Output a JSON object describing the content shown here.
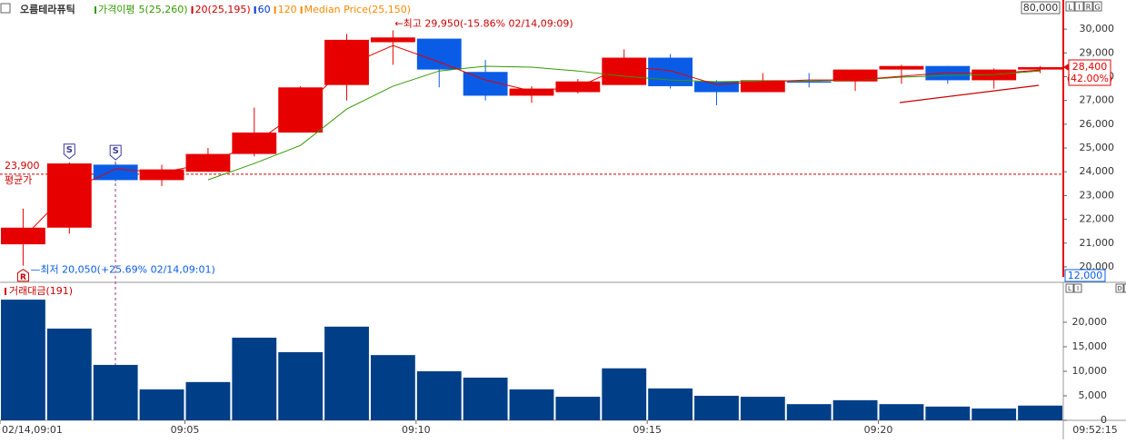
{
  "title": "오름테라퓨틱",
  "legend": [
    "가격이평",
    "5(25,260)",
    "20(25,195)",
    "60",
    "120",
    "Median Price(25,150)"
  ],
  "legend_colors": [
    "#339900",
    "#339900",
    "#cc0000",
    "#0033cc",
    "#ff8800",
    "#ff8800"
  ],
  "toolbar": [
    "L",
    "I",
    "R",
    "G"
  ],
  "volume_toolbar": [
    "L",
    "I",
    "D",
    "X"
  ],
  "chart_data": [
    {
      "type": "candlestick",
      "categories": [
        "02/14,09:01",
        null,
        null,
        null,
        "09:05",
        null,
        null,
        null,
        null,
        "09:10",
        null,
        null,
        null,
        null,
        "09:15",
        null,
        null,
        null,
        null,
        "09:20",
        null,
        null,
        null
      ],
      "open": [
        20950,
        21650,
        24300,
        23650,
        24000,
        24750,
        25650,
        27650,
        29450,
        29600,
        28200,
        27200,
        27350,
        27650,
        28800,
        27800,
        27350,
        27800,
        27800,
        28300,
        28450,
        27850,
        28300
      ],
      "high": [
        22450,
        24400,
        24350,
        24300,
        25000,
        26700,
        27600,
        29800,
        29950,
        29600,
        28700,
        27600,
        27900,
        29150,
        28950,
        27850,
        28150,
        28150,
        28300,
        28500,
        28450,
        28350,
        28450
      ],
      "low": [
        20050,
        21400,
        23600,
        23400,
        24000,
        24650,
        25650,
        27000,
        28500,
        27550,
        27000,
        26900,
        27300,
        27650,
        27500,
        26800,
        27350,
        27550,
        27400,
        27700,
        27700,
        27500,
        28150
      ],
      "close": [
        21650,
        24350,
        23650,
        24100,
        24750,
        25650,
        27550,
        29550,
        29650,
        28300,
        27200,
        27500,
        27800,
        28800,
        27600,
        27350,
        27850,
        27750,
        28300,
        28450,
        27850,
        28300,
        28400
      ],
      "up_color": "#e60000",
      "down_color": "#0a5ce6",
      "series": [
        {
          "name": "5(25,260)",
          "color": "#339900",
          "values": [
            null,
            null,
            null,
            null,
            23660,
            24350,
            25110,
            26640,
            27600,
            28240,
            28440,
            28400,
            28240,
            28020,
            27860,
            27790,
            27820,
            27820,
            27860,
            27980,
            28050,
            28090,
            28240
          ]
        },
        {
          "name": "20(25,195)",
          "color": "#e60000",
          "values": [
            21220,
            23210,
            24120,
            23970,
            24350,
            25190,
            26560,
            28470,
            29310,
            28620,
            27860,
            27400,
            27560,
            28440,
            28250,
            27670,
            27790,
            27860,
            27860,
            28020,
            28170,
            28130,
            28280
          ]
        }
      ],
      "ylim": [
        19580,
        30920
      ],
      "yticks": [
        {
          "value": 20000,
          "label": "20,000"
        },
        {
          "value": 21000,
          "label": "21,000"
        },
        {
          "value": 22000,
          "label": "22,000"
        },
        {
          "value": 23000,
          "label": "23,000"
        },
        {
          "value": 24000,
          "label": "24,000"
        },
        {
          "value": 25000,
          "label": "25,000"
        },
        {
          "value": 26000,
          "label": "26,000"
        },
        {
          "value": 27000,
          "label": "27,000"
        },
        {
          "value": 28000,
          "label": "28,000"
        },
        {
          "value": 29000,
          "label": "29,000"
        },
        {
          "value": 30000,
          "label": "30,000"
        }
      ],
      "average": {
        "value": 23900,
        "label": "23,900",
        "text": "평균가"
      },
      "current": {
        "value": 28400,
        "label": "28,400",
        "change": "(42.00%)"
      },
      "axis_top": "80,000",
      "axis_bottom": "12,000",
      "annotations": [
        "←최고 29,950(-15.86% 02/14,09:09)",
        "—최저 20,050(+25.69% 02/14,09:01)"
      ],
      "markers": [
        "S",
        "S",
        "R"
      ],
      "time": "09:52:15"
    },
    {
      "type": "bar",
      "title": "거래대금(191)",
      "color": "#003f87",
      "values": [
        24600,
        18700,
        11300,
        6300,
        7800,
        16850,
        13900,
        19100,
        13300,
        10000,
        8700,
        6300,
        4800,
        10600,
        6500,
        5000,
        4800,
        3300,
        4100,
        3300,
        2800,
        2400,
        3000
      ],
      "ylim": [
        0,
        26100
      ],
      "yticks": [
        0,
        {
          "value": 5000,
          "label": "5,000"
        },
        {
          "value": 10000,
          "label": "10,000"
        },
        {
          "value": 15000,
          "label": "15,000"
        },
        {
          "value": 20000,
          "label": "20,000"
        }
      ]
    }
  ]
}
